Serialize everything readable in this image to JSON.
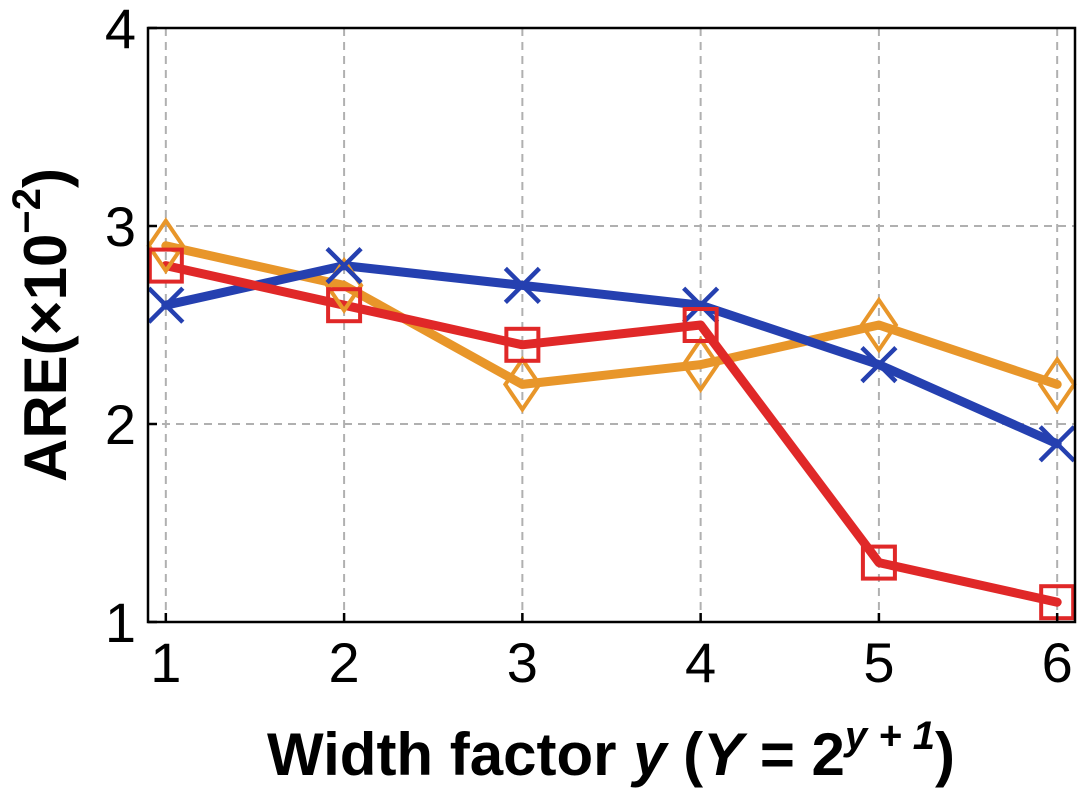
{
  "chart_data": {
    "type": "line",
    "xlabel": {
      "main": "Width factor ",
      "var": "y",
      "open": " (",
      "cap": "Y",
      "eq": " = 2",
      "sup": "y + 1",
      "close": ")"
    },
    "ylabel": {
      "main": "ARE(×10",
      "sup": "−2",
      "close": ")"
    },
    "x": [
      1,
      2,
      3,
      4,
      5,
      6
    ],
    "xticks": [
      "1",
      "2",
      "3",
      "4",
      "5",
      "6"
    ],
    "yticks": [
      "1",
      "2",
      "3",
      "4"
    ],
    "xlim": [
      0.9,
      6.1
    ],
    "ylim": [
      1,
      4
    ],
    "grid": true,
    "series": [
      {
        "values": [
          2.9,
          2.7,
          2.2,
          2.3,
          2.5,
          2.2
        ],
        "color": "#e8962a",
        "marker": "diamond"
      },
      {
        "values": [
          2.6,
          2.8,
          2.7,
          2.6,
          2.3,
          1.9
        ],
        "color": "#2540b0",
        "marker": "x"
      },
      {
        "values": [
          2.8,
          2.6,
          2.4,
          2.5,
          1.3,
          1.1
        ],
        "color": "#e02828",
        "marker": "square"
      }
    ]
  }
}
